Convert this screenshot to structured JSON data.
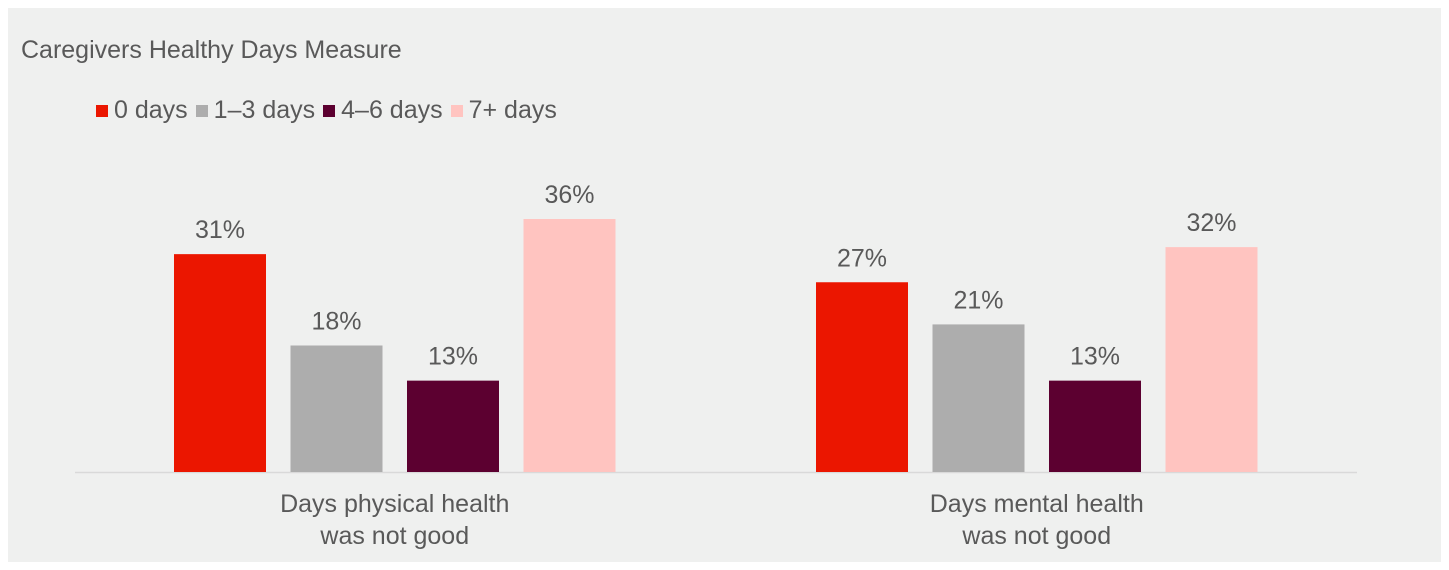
{
  "chart_data": {
    "type": "bar",
    "title": "Caregivers Healthy Days Measure",
    "categories": [
      [
        "Days physical health",
        "was not good"
      ],
      [
        "Days mental health",
        "was not good"
      ]
    ],
    "series": [
      {
        "name": "0 days",
        "color": "#eb1600",
        "values": [
          31,
          27
        ],
        "labels": [
          "31%",
          "27%"
        ]
      },
      {
        "name": "1–3 days",
        "color": "#adadad",
        "values": [
          18,
          21
        ],
        "labels": [
          "18%",
          "21%"
        ]
      },
      {
        "name": "4–6 days",
        "color": "#5c0030",
        "values": [
          13,
          13
        ],
        "labels": [
          "13%",
          "13%"
        ]
      },
      {
        "name": "7+ days",
        "color": "#ffc4c0",
        "values": [
          36,
          32
        ],
        "labels": [
          "36%",
          "32%"
        ]
      }
    ],
    "value_unit": "%",
    "ylim": [
      0,
      40
    ],
    "grid": false,
    "legend_position": "top-left",
    "xlabel": "",
    "ylabel": ""
  },
  "colors": {
    "background": "#eff0ef",
    "text": "#595959",
    "axis": "#d9d9d9"
  }
}
